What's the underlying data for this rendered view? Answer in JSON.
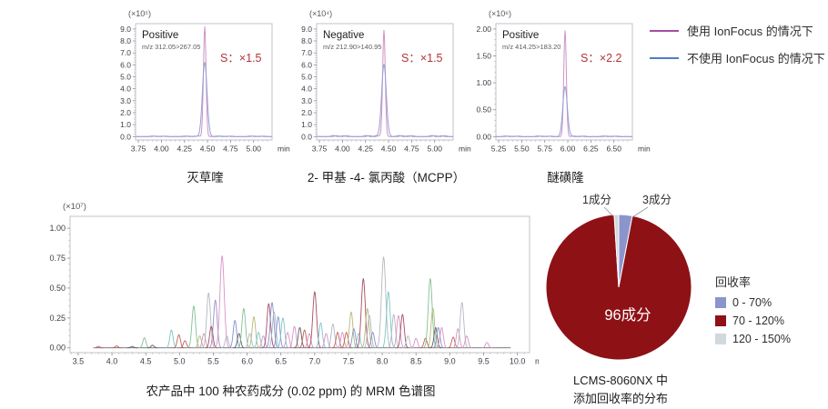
{
  "top_legend": {
    "items": [
      {
        "label": "使用 IonFocus 的情况下",
        "color": "#a14ea3"
      },
      {
        "label": "不使用 IonFocus 的情况下",
        "color": "#507cc9"
      }
    ]
  },
  "chart_data": [
    {
      "kind": "small",
      "type": "line",
      "title": "灭草喹",
      "scale_label": "(×10⁵)",
      "mode": "Positive",
      "transition": "m/z 312.05>267.05",
      "s_label": "S：×1.5",
      "s_color": "#b23439",
      "x_unit": "min",
      "xlim": [
        3.72,
        5.2
      ],
      "xticks": [
        "3.75",
        "4.00",
        "4.25",
        "4.50",
        "4.75",
        "5.00"
      ],
      "ylim": [
        -0.28,
        9.45
      ],
      "yticks": [
        "9.0",
        "8.0",
        "7.0",
        "6.0",
        "5.0",
        "4.0",
        "3.0",
        "2.0",
        "1.0",
        "0.0"
      ],
      "peak_time": 4.47,
      "noise": 0.055,
      "series": [
        {
          "name": "使用 IonFocus 的情况下",
          "color": "#cf93c6",
          "height": 9.2,
          "sigma": 0.014
        },
        {
          "name": "不使用 IonFocus 的情况下",
          "color": "#93a0d4",
          "height": 6.2,
          "sigma": 0.025
        }
      ]
    },
    {
      "kind": "small",
      "type": "line",
      "title": "2- 甲基 -4- 氯丙酸（MCPP）",
      "scale_label": "(×10⁴)",
      "mode": "Negative",
      "transition": "m/z 212.90>140.95",
      "s_label": "S：×1.5",
      "s_color": "#b23439",
      "x_unit": "min",
      "xlim": [
        3.72,
        5.2
      ],
      "xticks": [
        "3.75",
        "4.00",
        "4.25",
        "4.50",
        "4.75",
        "5.00"
      ],
      "ylim": [
        -0.28,
        9.45
      ],
      "yticks": [
        "9.0",
        "8.0",
        "7.0",
        "6.0",
        "5.0",
        "4.0",
        "3.0",
        "2.0",
        "1.0",
        "0.0"
      ],
      "peak_time": 4.45,
      "noise": 0.1,
      "series": [
        {
          "name": "使用 IonFocus 的情况下",
          "color": "#cf93c6",
          "height": 8.9,
          "sigma": 0.014
        },
        {
          "name": "不使用 IonFocus 的情况下",
          "color": "#93a0d4",
          "height": 6.05,
          "sigma": 0.025
        }
      ]
    },
    {
      "kind": "small",
      "type": "line",
      "title": "醚磺隆",
      "scale_label": "(×10⁶)",
      "mode": "Positive",
      "transition": "m/z 414.25>183.20",
      "s_label": "S：×2.2",
      "s_color": "#b23439",
      "x_unit": "min",
      "xlim": [
        5.22,
        6.7
      ],
      "xticks": [
        "5.25",
        "5.50",
        "5.75",
        "6.00",
        "6.25",
        "6.50"
      ],
      "ylim": [
        -0.062,
        2.1
      ],
      "yticks": [
        "2.00",
        "1.50",
        "1.00",
        "0.50",
        "0.00"
      ],
      "peak_time": 5.97,
      "noise": 0.013,
      "series": [
        {
          "name": "使用 IonFocus 的情况下",
          "color": "#cf93c6",
          "height": 1.97,
          "sigma": 0.014
        },
        {
          "name": "不使用 IonFocus 的情况下",
          "color": "#93a0d4",
          "height": 0.93,
          "sigma": 0.024
        }
      ]
    },
    {
      "kind": "big",
      "type": "line",
      "title": "农产品中 100 种农药成分 (0.02 ppm) 的 MRM 色谱图",
      "scale_label": "(×10⁷)",
      "x_unit": "min",
      "xlim": [
        3.38,
        10.18
      ],
      "xticks": [
        "3.5",
        "4.0",
        "4.5",
        "5.0",
        "5.5",
        "6.0",
        "6.5",
        "7.0",
        "7.5",
        "8.0",
        "8.5",
        "9.0",
        "9.5",
        "10.0"
      ],
      "ylim": [
        -0.04,
        1.1
      ],
      "yticks": [
        "1.00",
        "0.75",
        "0.50",
        "0.25",
        "0.00"
      ],
      "palette": [
        "#d893c4",
        "#a84e60",
        "#84c096",
        "#7cc6c8",
        "#8292cf",
        "#b8b879",
        "#b2b8c2",
        "#a08cc8",
        "#c2605a",
        "#5c5c66"
      ],
      "baseline": {
        "from": 3.75,
        "to": 9.9,
        "color": "#6a6a72"
      },
      "peaks": [
        [
          3.8,
          0.012,
          8
        ],
        [
          4.07,
          0.016,
          8
        ],
        [
          4.3,
          0.012,
          9
        ],
        [
          4.48,
          0.085,
          2
        ],
        [
          4.6,
          0.022,
          9
        ],
        [
          4.88,
          0.15,
          3
        ],
        [
          4.99,
          0.11,
          8
        ],
        [
          5.08,
          0.06,
          8
        ],
        [
          5.21,
          0.35,
          2
        ],
        [
          5.3,
          0.1,
          5
        ],
        [
          5.36,
          0.12,
          0
        ],
        [
          5.43,
          0.46,
          6
        ],
        [
          5.47,
          0.18,
          1
        ],
        [
          5.53,
          0.4,
          7
        ],
        [
          5.63,
          0.77,
          0
        ],
        [
          5.7,
          0.1,
          6
        ],
        [
          5.82,
          0.23,
          4
        ],
        [
          5.88,
          0.12,
          9
        ],
        [
          5.95,
          0.33,
          2
        ],
        [
          6.04,
          0.12,
          6
        ],
        [
          6.1,
          0.26,
          5
        ],
        [
          6.17,
          0.13,
          3
        ],
        [
          6.24,
          0.1,
          0
        ],
        [
          6.32,
          0.37,
          1
        ],
        [
          6.37,
          0.38,
          4
        ],
        [
          6.4,
          0.3,
          6
        ],
        [
          6.46,
          0.26,
          4
        ],
        [
          6.53,
          0.25,
          3
        ],
        [
          6.6,
          0.13,
          0
        ],
        [
          6.7,
          0.18,
          0
        ],
        [
          6.78,
          0.17,
          9
        ],
        [
          6.85,
          0.15,
          8
        ],
        [
          6.92,
          0.12,
          0
        ],
        [
          7.0,
          0.47,
          1
        ],
        [
          7.09,
          0.21,
          3
        ],
        [
          7.17,
          0.12,
          0
        ],
        [
          7.27,
          0.2,
          6
        ],
        [
          7.34,
          0.13,
          8
        ],
        [
          7.41,
          0.13,
          0
        ],
        [
          7.47,
          0.13,
          8
        ],
        [
          7.54,
          0.3,
          5
        ],
        [
          7.58,
          0.16,
          4
        ],
        [
          7.65,
          0.12,
          3
        ],
        [
          7.72,
          0.58,
          1
        ],
        [
          7.78,
          0.33,
          5
        ],
        [
          7.81,
          0.27,
          6
        ],
        [
          7.86,
          0.13,
          4
        ],
        [
          8.02,
          0.76,
          6
        ],
        [
          8.09,
          0.47,
          3
        ],
        [
          8.17,
          0.28,
          6
        ],
        [
          8.24,
          0.27,
          0
        ],
        [
          8.3,
          0.28,
          1
        ],
        [
          8.38,
          0.1,
          6
        ],
        [
          8.5,
          0.08,
          0
        ],
        [
          8.64,
          0.08,
          8
        ],
        [
          8.71,
          0.58,
          2
        ],
        [
          8.75,
          0.33,
          5
        ],
        [
          8.79,
          0.17,
          9
        ],
        [
          8.83,
          0.17,
          4
        ],
        [
          8.88,
          0.17,
          0
        ],
        [
          9.05,
          0.09,
          8
        ],
        [
          9.12,
          0.16,
          0
        ],
        [
          9.18,
          0.38,
          6
        ],
        [
          9.25,
          0.1,
          0
        ],
        [
          9.55,
          0.045,
          0
        ]
      ]
    },
    {
      "kind": "pie",
      "type": "pie",
      "legend_title": "回收率",
      "caption_line1": "LCMS-8060NX 中",
      "caption_line2": "添加回收率的分布",
      "center_label": "96成分",
      "center_label_color": "#ffffff",
      "slices": [
        {
          "label": "3成分",
          "legend": "0 - 70%",
          "value": 3,
          "color": "#8b95cc"
        },
        {
          "label": "96成分",
          "legend": "70 - 120%",
          "value": 96,
          "color": "#8e1116"
        },
        {
          "label": "1成分",
          "legend": "120 - 150%",
          "value": 1,
          "color": "#d3d8dd"
        }
      ]
    }
  ]
}
